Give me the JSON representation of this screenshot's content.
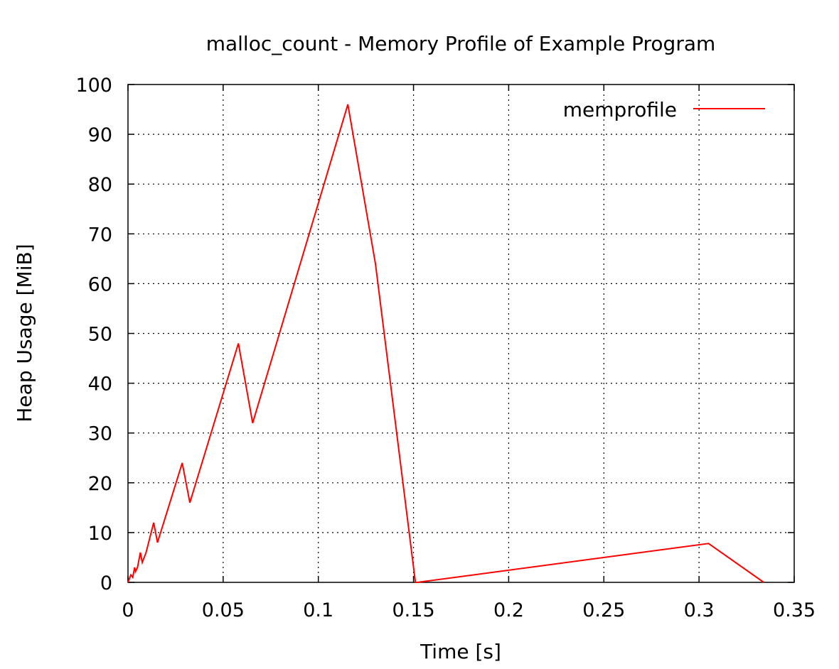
{
  "chart_data": {
    "type": "line",
    "title": "malloc_count - Memory Profile of Example Program",
    "xlabel": "Time [s]",
    "ylabel": "Heap Usage [MiB]",
    "xlim": [
      0,
      0.35
    ],
    "ylim": [
      0,
      100
    ],
    "xticks": [
      0,
      0.05,
      0.1,
      0.15,
      0.2,
      0.25,
      0.3,
      0.35
    ],
    "xtick_labels": [
      "0",
      "0.05",
      "0.1",
      "0.15",
      "0.2",
      "0.25",
      "0.3",
      "0.35"
    ],
    "yticks": [
      0,
      10,
      20,
      30,
      40,
      50,
      60,
      70,
      80,
      90,
      100
    ],
    "ytick_labels": [
      "0",
      "10",
      "20",
      "30",
      "40",
      "50",
      "60",
      "70",
      "80",
      "90",
      "100"
    ],
    "grid": true,
    "legend": {
      "position": "top-right",
      "entries": [
        "memprofile"
      ]
    },
    "series": [
      {
        "name": "memprofile",
        "color": "#ff0000",
        "x": [
          0,
          0.0015,
          0.0025,
          0.0035,
          0.004,
          0.005,
          0.0065,
          0.0075,
          0.0095,
          0.0135,
          0.0155,
          0.0285,
          0.0325,
          0.058,
          0.0655,
          0.1155,
          0.13,
          0.151,
          0.152,
          0.305,
          0.334
        ],
        "y": [
          0,
          1.5,
          1,
          3,
          2.2,
          3,
          6,
          4,
          6,
          12,
          8,
          24,
          16,
          48,
          32,
          96,
          64,
          0,
          0,
          7.8,
          0
        ]
      }
    ]
  }
}
